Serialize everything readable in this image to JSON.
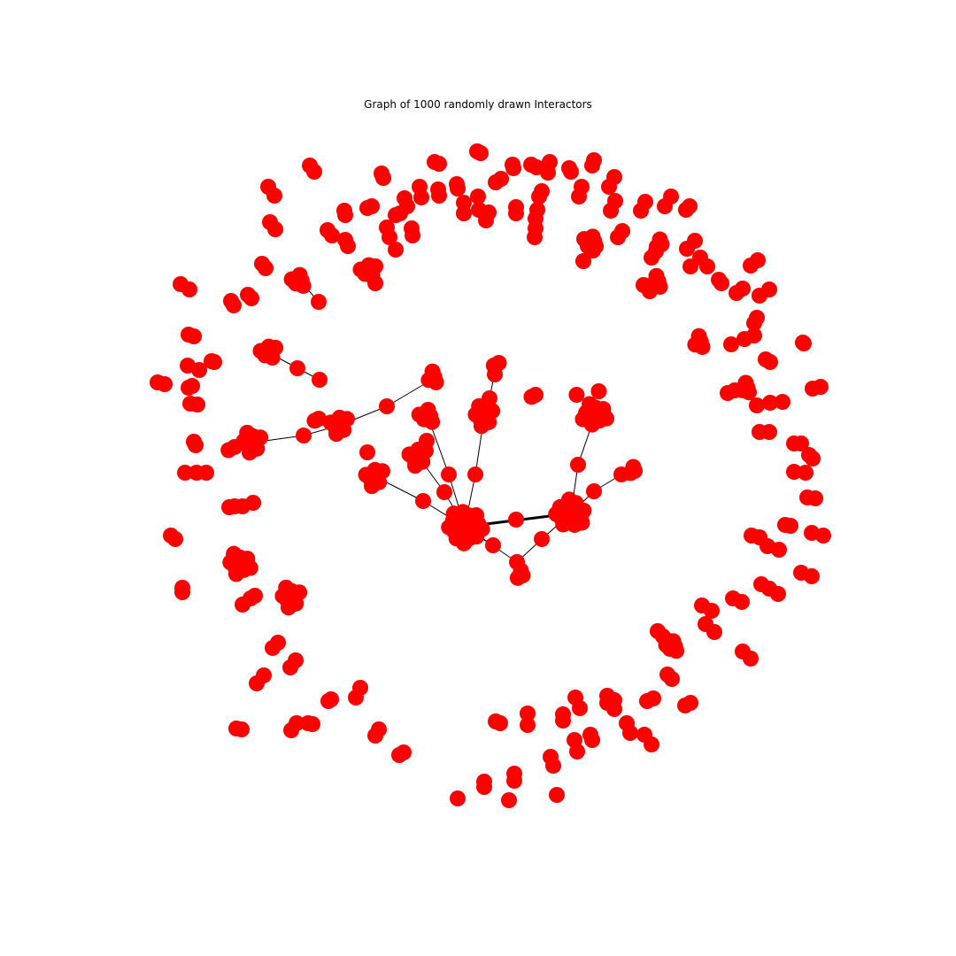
{
  "title": "Graph of 1000 randomly drawn Interactors",
  "colors": {
    "node": "#ff0000",
    "edge": "#000000",
    "background": "#ffffff"
  }
}
